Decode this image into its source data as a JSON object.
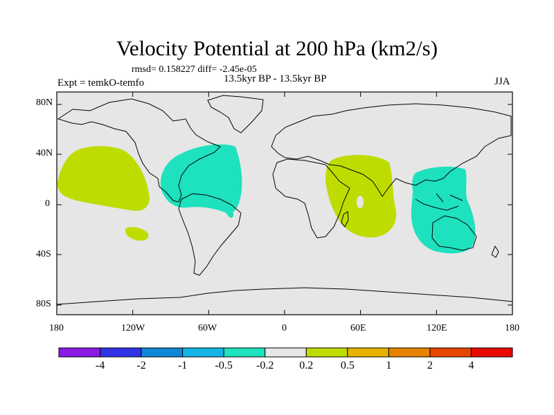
{
  "title": "Velocity Potential at 200 hPa (km2/s)",
  "stats": "rmsd= 0.158227 diff= -2.45e-05",
  "experiment": "Expt = temkO-temfo",
  "period": "13.5kyr BP - 13.5kyr BP",
  "season": "JJA",
  "lat_ticks": [
    "80N",
    "40N",
    "0",
    "40S",
    "80S"
  ],
  "lon_ticks": [
    "180",
    "120W",
    "60W",
    "0",
    "60E",
    "120E",
    "180"
  ],
  "colorbar": {
    "colors": [
      "#8a1ae6",
      "#3232e6",
      "#0f87d7",
      "#14b4e6",
      "#1ee1be",
      "#e6e6e6",
      "#bedc00",
      "#e6b400",
      "#e68200",
      "#e64600",
      "#e60a00"
    ],
    "labels": [
      "-4",
      "-2",
      "-1",
      "-0.5",
      "-0.2",
      "0.2",
      "0.5",
      "1",
      "2",
      "4"
    ]
  },
  "fills": {
    "land_background": "#e6e6e6",
    "positive": "#bedc00",
    "negative": "#1ee1be"
  }
}
